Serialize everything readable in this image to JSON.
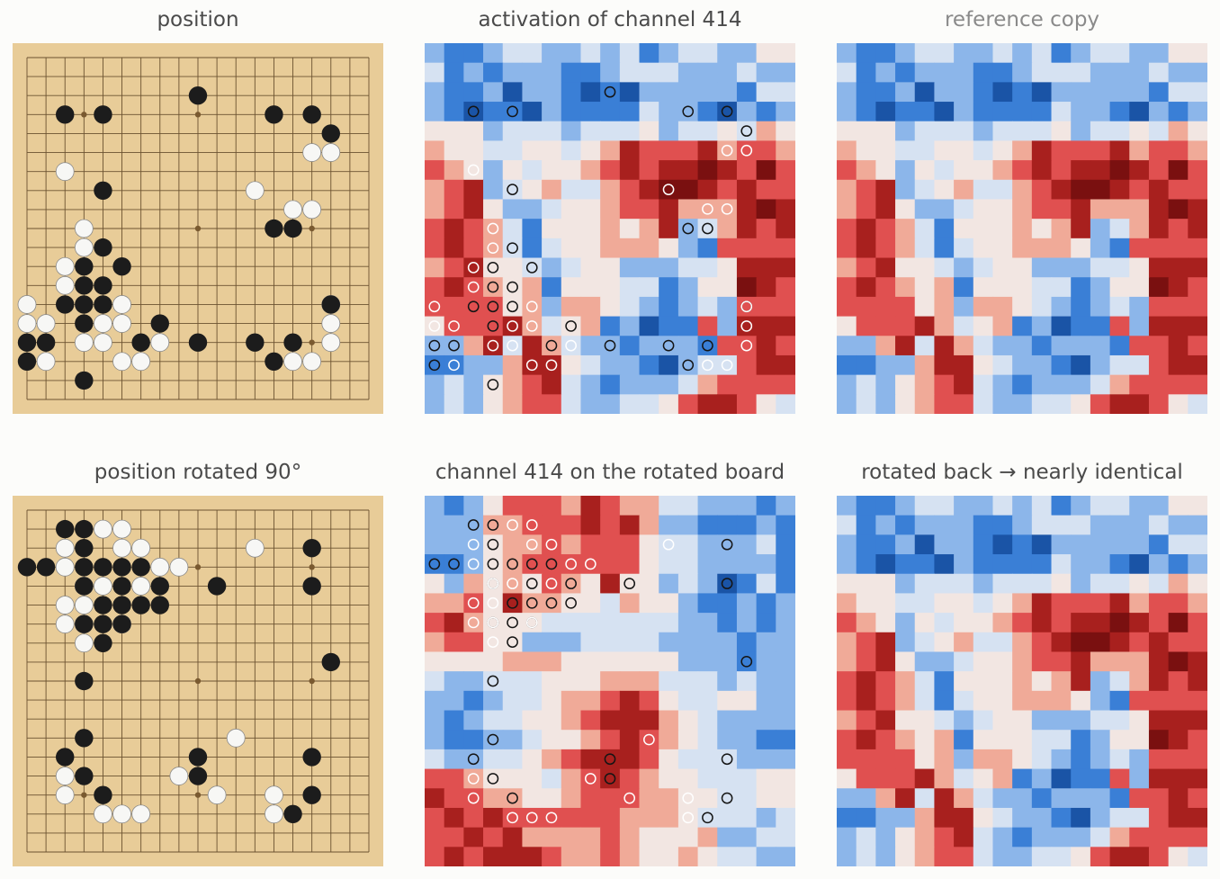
{
  "panels": [
    {
      "id": "p1",
      "title": "position",
      "kind": "board",
      "board": "original"
    },
    {
      "id": "p2",
      "title": "activation of channel 414",
      "kind": "heat",
      "board": "original",
      "heat": "original"
    },
    {
      "id": "p3",
      "title": "reference copy",
      "kind": "heat",
      "heat": "original",
      "muted": true
    },
    {
      "id": "p4",
      "title": "position rotated 90°",
      "kind": "board",
      "board": "rotated"
    },
    {
      "id": "p5",
      "title": "channel 414 on the rotated board",
      "kind": "heat",
      "board": "rotated",
      "heat": "rotated"
    },
    {
      "id": "p6",
      "title": "rotated back → nearly identical",
      "kind": "heat",
      "heat": "original"
    }
  ],
  "colors": {
    "board_bg": "#e8cc98",
    "grid_line": "#6b5230",
    "black_stone": "#1c1c1c",
    "white_stone": "#f7f7f5",
    "heat_scale": [
      "#1a54a6",
      "#3a7fd6",
      "#8cb6ea",
      "#d6e2f2",
      "#f2e6e2",
      "#f0aa98",
      "#e05050",
      "#a8201e",
      "#7a1010"
    ]
  },
  "board_size": 19,
  "star_points": [
    [
      3,
      3
    ],
    [
      3,
      9
    ],
    [
      3,
      15
    ],
    [
      9,
      3
    ],
    [
      9,
      9
    ],
    [
      9,
      15
    ],
    [
      15,
      3
    ],
    [
      15,
      9
    ],
    [
      15,
      15
    ]
  ],
  "stones_original": {
    "black": [
      [
        2,
        9
      ],
      [
        3,
        2
      ],
      [
        3,
        4
      ],
      [
        3,
        13
      ],
      [
        3,
        15
      ],
      [
        4,
        16
      ],
      [
        7,
        4
      ],
      [
        9,
        13
      ],
      [
        9,
        14
      ],
      [
        10,
        4
      ],
      [
        11,
        3
      ],
      [
        11,
        5
      ],
      [
        12,
        3
      ],
      [
        12,
        4
      ],
      [
        13,
        2
      ],
      [
        13,
        3
      ],
      [
        13,
        4
      ],
      [
        13,
        16
      ],
      [
        14,
        3
      ],
      [
        14,
        7
      ],
      [
        15,
        0
      ],
      [
        15,
        1
      ],
      [
        15,
        6
      ],
      [
        15,
        9
      ],
      [
        15,
        12
      ],
      [
        15,
        14
      ],
      [
        16,
        0
      ],
      [
        16,
        13
      ],
      [
        17,
        3
      ]
    ],
    "white": [
      [
        5,
        15
      ],
      [
        5,
        16
      ],
      [
        6,
        2
      ],
      [
        7,
        12
      ],
      [
        8,
        14
      ],
      [
        8,
        15
      ],
      [
        9,
        3
      ],
      [
        10,
        3
      ],
      [
        11,
        2
      ],
      [
        12,
        2
      ],
      [
        13,
        0
      ],
      [
        13,
        5
      ],
      [
        13,
        16
      ],
      [
        14,
        0
      ],
      [
        14,
        1
      ],
      [
        14,
        4
      ],
      [
        14,
        5
      ],
      [
        14,
        16
      ],
      [
        15,
        3
      ],
      [
        15,
        4
      ],
      [
        15,
        7
      ],
      [
        15,
        16
      ],
      [
        16,
        1
      ],
      [
        16,
        5
      ],
      [
        16,
        6
      ],
      [
        16,
        14
      ],
      [
        16,
        15
      ]
    ]
  },
  "stones_rotated": {
    "black": [
      [
        1,
        2
      ],
      [
        1,
        3
      ],
      [
        2,
        3
      ],
      [
        2,
        15
      ],
      [
        3,
        0
      ],
      [
        3,
        1
      ],
      [
        3,
        3
      ],
      [
        3,
        4
      ],
      [
        3,
        5
      ],
      [
        3,
        6
      ],
      [
        4,
        3
      ],
      [
        4,
        5
      ],
      [
        4,
        7
      ],
      [
        4,
        10
      ],
      [
        4,
        15
      ],
      [
        5,
        4
      ],
      [
        5,
        5
      ],
      [
        5,
        6
      ],
      [
        5,
        7
      ],
      [
        6,
        3
      ],
      [
        6,
        4
      ],
      [
        6,
        5
      ],
      [
        7,
        4
      ],
      [
        8,
        16
      ],
      [
        9,
        3
      ],
      [
        12,
        3
      ],
      [
        13,
        2
      ],
      [
        13,
        9
      ],
      [
        13,
        15
      ],
      [
        14,
        3
      ],
      [
        14,
        9
      ],
      [
        15,
        4
      ],
      [
        15,
        15
      ],
      [
        16,
        14
      ]
    ],
    "white": [
      [
        1,
        4
      ],
      [
        1,
        5
      ],
      [
        2,
        2
      ],
      [
        2,
        5
      ],
      [
        2,
        6
      ],
      [
        2,
        12
      ],
      [
        3,
        2
      ],
      [
        3,
        7
      ],
      [
        3,
        8
      ],
      [
        4,
        3
      ],
      [
        4,
        4
      ],
      [
        4,
        6
      ],
      [
        5,
        2
      ],
      [
        5,
        3
      ],
      [
        6,
        2
      ],
      [
        6,
        3
      ],
      [
        6,
        5
      ],
      [
        7,
        3
      ],
      [
        12,
        11
      ],
      [
        14,
        2
      ],
      [
        14,
        8
      ],
      [
        15,
        2
      ],
      [
        15,
        10
      ],
      [
        15,
        13
      ],
      [
        16,
        4
      ],
      [
        16,
        5
      ],
      [
        16,
        6
      ],
      [
        16,
        13
      ]
    ]
  },
  "heat_original": [
    "2112332232312332244",
    "3121222112333222322",
    "2112022101022222133",
    "2101102111132210212",
    "4442333233342334354",
    "5443344345766675665",
    "6542434456767787686",
    "5672345335678876766",
    "5674223445667555787",
    "6765314445457235767",
    "6765313445554216666",
    "5674432344222334777",
    "6765451444331244876",
    "6666452554321232666",
    "4666753451201162777",
    "2257375322122216676",
    "1122577432210233677",
    "2324567321222356666",
    "2324566322334677643"
  ],
  "heat_rotated": [
    "2124666576553322212",
    "2225566676752211121",
    "2224556566643322231",
    "1124566666643322221",
    "4254546547442320131",
    "5564755443544211212",
    "6754443333333221212",
    "5664422233332222122",
    "4444555444444222122",
    "3223334445553332322",
    "2212334556764334422",
    "2123344567775432222",
    "2112234456765432211",
    "3223345677764333222",
    "6654443567654433344",
    "7665544566655443344",
    "6767666666555433323",
    "6676755556544452233",
    "6767776556544543322"
  ]
}
